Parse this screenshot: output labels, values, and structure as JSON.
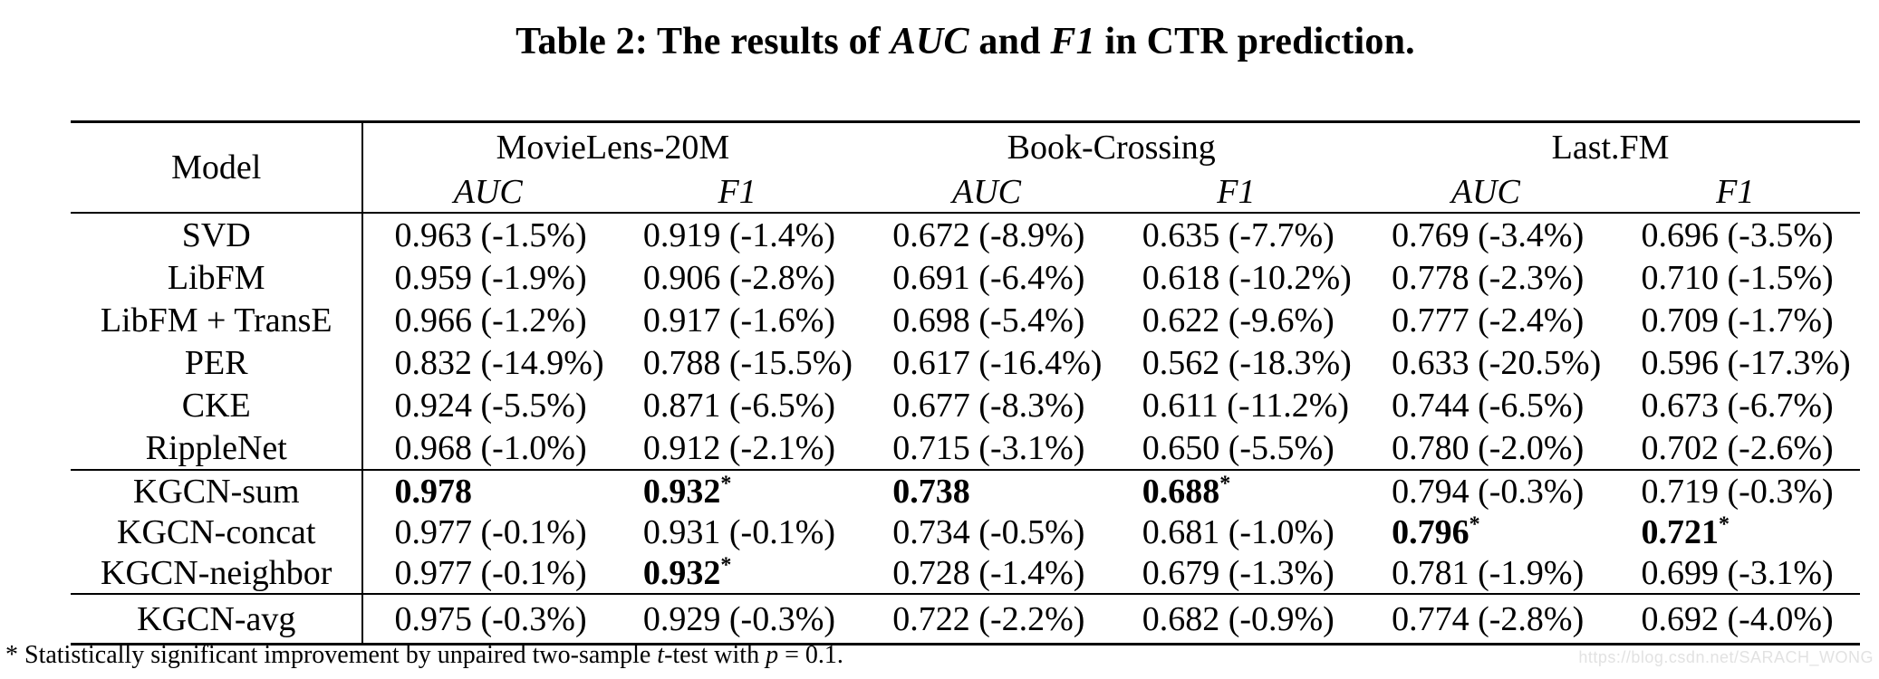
{
  "title": {
    "part1": "Table 2: The results of ",
    "auc": "AUC",
    "part2": " and ",
    "f1": "F1",
    "part3": " in CTR prediction."
  },
  "table": {
    "model_header": "Model",
    "groups": [
      {
        "label": "MovieLens-20M"
      },
      {
        "label": "Book-Crossing"
      },
      {
        "label": "Last.FM"
      }
    ],
    "metric_headers": [
      "AUC",
      "F1",
      "AUC",
      "F1",
      "AUC",
      "F1"
    ],
    "sections": [
      {
        "rows": [
          {
            "model": "SVD",
            "cells": [
              {
                "text": "0.963 (-1.5%)"
              },
              {
                "text": "0.919 (-1.4%)"
              },
              {
                "text": "0.672 (-8.9%)"
              },
              {
                "text": "0.635 (-7.7%)"
              },
              {
                "text": "0.769 (-3.4%)"
              },
              {
                "text": "0.696 (-3.5%)"
              }
            ]
          },
          {
            "model": "LibFM",
            "cells": [
              {
                "text": "0.959 (-1.9%)"
              },
              {
                "text": "0.906 (-2.8%)"
              },
              {
                "text": "0.691 (-6.4%)"
              },
              {
                "text": "0.618 (-10.2%)"
              },
              {
                "text": "0.778 (-2.3%)"
              },
              {
                "text": "0.710 (-1.5%)"
              }
            ]
          },
          {
            "model": "LibFM + TransE",
            "cells": [
              {
                "text": "0.966 (-1.2%)"
              },
              {
                "text": "0.917 (-1.6%)"
              },
              {
                "text": "0.698 (-5.4%)"
              },
              {
                "text": "0.622 (-9.6%)"
              },
              {
                "text": "0.777 (-2.4%)"
              },
              {
                "text": "0.709 (-1.7%)"
              }
            ]
          },
          {
            "model": "PER",
            "cells": [
              {
                "text": "0.832 (-14.9%)"
              },
              {
                "text": "0.788 (-15.5%)"
              },
              {
                "text": "0.617 (-16.4%)"
              },
              {
                "text": "0.562 (-18.3%)"
              },
              {
                "text": "0.633 (-20.5%)"
              },
              {
                "text": "0.596 (-17.3%)"
              }
            ]
          },
          {
            "model": "CKE",
            "cells": [
              {
                "text": "0.924 (-5.5%)"
              },
              {
                "text": "0.871 (-6.5%)"
              },
              {
                "text": "0.677 (-8.3%)"
              },
              {
                "text": "0.611 (-11.2%)"
              },
              {
                "text": "0.744 (-6.5%)"
              },
              {
                "text": "0.673 (-6.7%)"
              }
            ]
          },
          {
            "model": "RippleNet",
            "cells": [
              {
                "text": "0.968 (-1.0%)"
              },
              {
                "text": "0.912 (-2.1%)"
              },
              {
                "text": "0.715 (-3.1%)"
              },
              {
                "text": "0.650 (-5.5%)"
              },
              {
                "text": "0.780 (-2.0%)"
              },
              {
                "text": "0.702 (-2.6%)"
              }
            ]
          }
        ]
      },
      {
        "rows": [
          {
            "model": "KGCN-sum",
            "cells": [
              {
                "text": "0.978",
                "bold": true
              },
              {
                "text": "0.932",
                "bold": true,
                "star": true
              },
              {
                "text": "0.738",
                "bold": true
              },
              {
                "text": "0.688",
                "bold": true,
                "star": true
              },
              {
                "text": "0.794 (-0.3%)"
              },
              {
                "text": "0.719 (-0.3%)"
              }
            ]
          },
          {
            "model": "KGCN-concat",
            "cells": [
              {
                "text": "0.977 (-0.1%)"
              },
              {
                "text": "0.931 (-0.1%)"
              },
              {
                "text": "0.734 (-0.5%)"
              },
              {
                "text": "0.681 (-1.0%)"
              },
              {
                "text": "0.796",
                "bold": true,
                "star": true
              },
              {
                "text": "0.721",
                "bold": true,
                "star": true
              }
            ]
          },
          {
            "model": "KGCN-neighbor",
            "cells": [
              {
                "text": "0.977 (-0.1%)"
              },
              {
                "text": "0.932",
                "bold": true,
                "star": true
              },
              {
                "text": "0.728 (-1.4%)"
              },
              {
                "text": "0.679 (-1.3%)"
              },
              {
                "text": "0.781 (-1.9%)"
              },
              {
                "text": "0.699 (-3.1%)"
              }
            ]
          }
        ]
      },
      {
        "rows": [
          {
            "model": "KGCN-avg",
            "cells": [
              {
                "text": "0.975 (-0.3%)"
              },
              {
                "text": "0.929 (-0.3%)"
              },
              {
                "text": "0.722 (-2.2%)"
              },
              {
                "text": "0.682 (-0.9%)"
              },
              {
                "text": "0.774 (-2.8%)"
              },
              {
                "text": "0.692 (-4.0%)"
              }
            ]
          }
        ]
      }
    ]
  },
  "footnote": {
    "star": "*",
    "part1": " Statistically significant improvement by unpaired two-sample ",
    "t": "t",
    "part2": "-test with ",
    "p": "p",
    "part3": " = 0.1."
  },
  "watermark": "https://blog.csdn.net/SARACH_WONG",
  "colors": {
    "background": "#ffffff",
    "text": "#000000",
    "rule": "#000000",
    "watermark": "#e2e2e2"
  },
  "chart_data": {
    "type": "table",
    "title": "Table 2: The results of AUC and F1 in CTR prediction.",
    "columns": [
      "Model",
      "MovieLens-20M AUC",
      "MovieLens-20M F1",
      "Book-Crossing AUC",
      "Book-Crossing F1",
      "Last.FM AUC",
      "Last.FM F1"
    ],
    "rows": [
      [
        "SVD",
        "0.963 (-1.5%)",
        "0.919 (-1.4%)",
        "0.672 (-8.9%)",
        "0.635 (-7.7%)",
        "0.769 (-3.4%)",
        "0.696 (-3.5%)"
      ],
      [
        "LibFM",
        "0.959 (-1.9%)",
        "0.906 (-2.8%)",
        "0.691 (-6.4%)",
        "0.618 (-10.2%)",
        "0.778 (-2.3%)",
        "0.710 (-1.5%)"
      ],
      [
        "LibFM + TransE",
        "0.966 (-1.2%)",
        "0.917 (-1.6%)",
        "0.698 (-5.4%)",
        "0.622 (-9.6%)",
        "0.777 (-2.4%)",
        "0.709 (-1.7%)"
      ],
      [
        "PER",
        "0.832 (-14.9%)",
        "0.788 (-15.5%)",
        "0.617 (-16.4%)",
        "0.562 (-18.3%)",
        "0.633 (-20.5%)",
        "0.596 (-17.3%)"
      ],
      [
        "CKE",
        "0.924 (-5.5%)",
        "0.871 (-6.5%)",
        "0.677 (-8.3%)",
        "0.611 (-11.2%)",
        "0.744 (-6.5%)",
        "0.673 (-6.7%)"
      ],
      [
        "RippleNet",
        "0.968 (-1.0%)",
        "0.912 (-2.1%)",
        "0.715 (-3.1%)",
        "0.650 (-5.5%)",
        "0.780 (-2.0%)",
        "0.702 (-2.6%)"
      ],
      [
        "KGCN-sum",
        "0.978",
        "0.932*",
        "0.738",
        "0.688*",
        "0.794 (-0.3%)",
        "0.719 (-0.3%)"
      ],
      [
        "KGCN-concat",
        "0.977 (-0.1%)",
        "0.931 (-0.1%)",
        "0.734 (-0.5%)",
        "0.681 (-1.0%)",
        "0.796*",
        "0.721*"
      ],
      [
        "KGCN-neighbor",
        "0.977 (-0.1%)",
        "0.932*",
        "0.728 (-1.4%)",
        "0.679 (-1.3%)",
        "0.781 (-1.9%)",
        "0.699 (-3.1%)"
      ],
      [
        "KGCN-avg",
        "0.975 (-0.3%)",
        "0.929 (-0.3%)",
        "0.722 (-2.2%)",
        "0.682 (-0.9%)",
        "0.774 (-2.8%)",
        "0.692 (-4.0%)"
      ]
    ]
  }
}
